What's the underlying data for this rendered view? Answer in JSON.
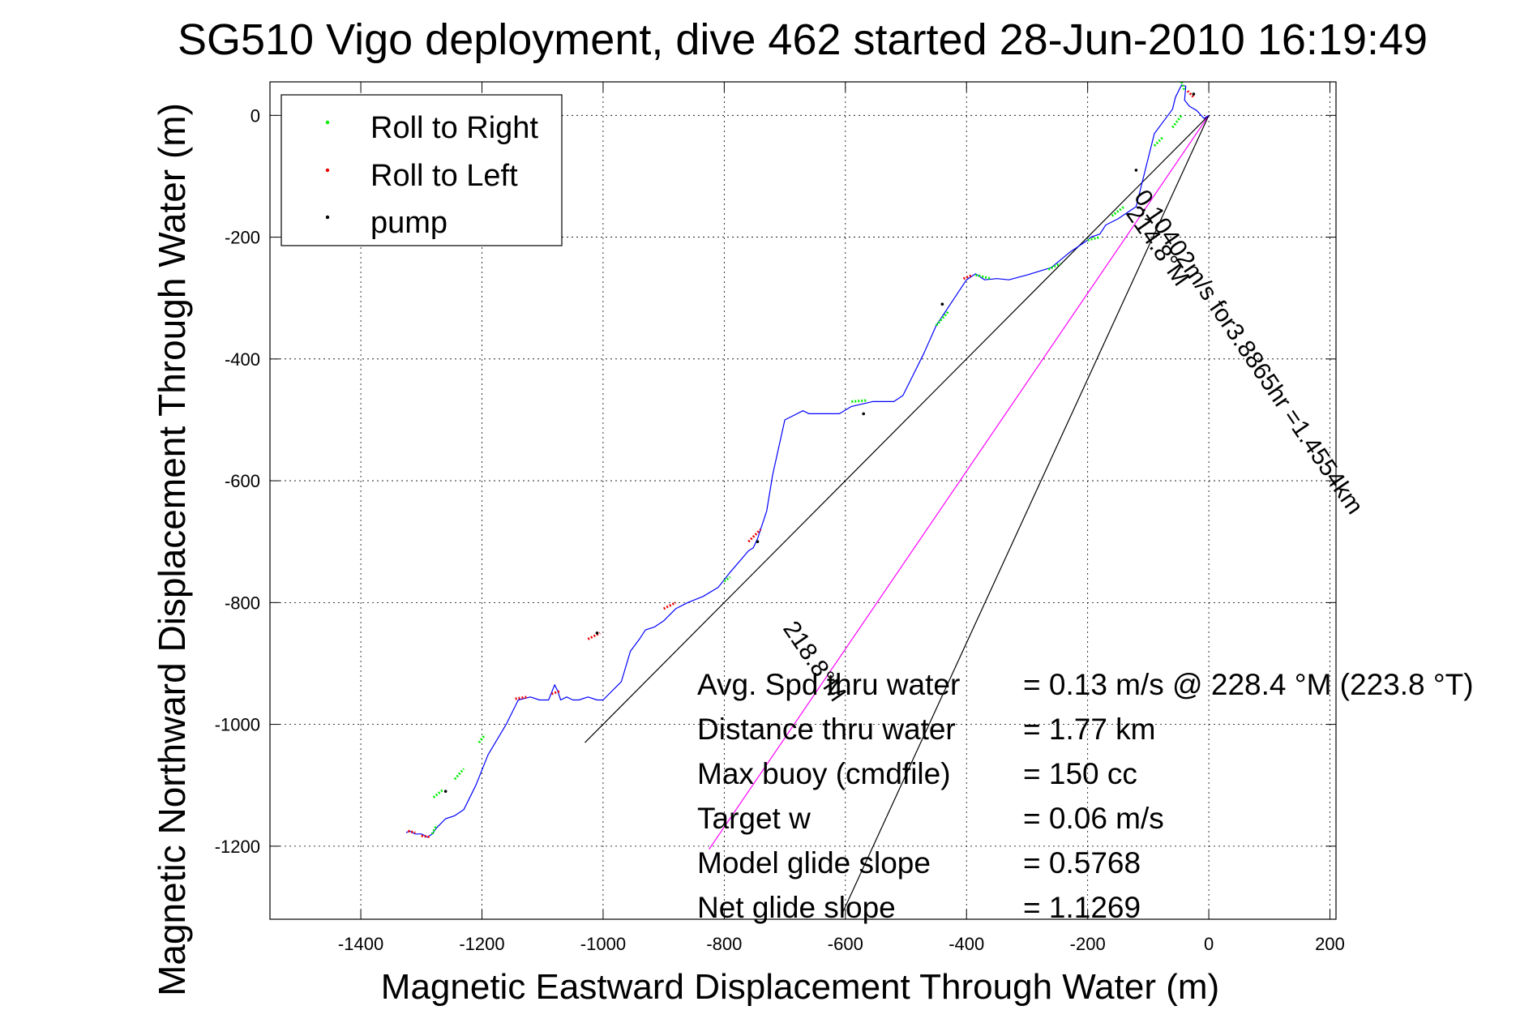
{
  "chart_data": {
    "type": "line",
    "title": "SG510 Vigo deployment, dive 462 started 28-Jun-2010 16:19:49",
    "xlabel": "Magnetic Eastward Displacement Through Water (m)",
    "ylabel": "Magnetic Northward Displacement Through Water (m)",
    "xlim": [
      -1550,
      210
    ],
    "ylim": [
      -1320,
      55
    ],
    "grid": true,
    "xticks": [
      -1400,
      -1200,
      -1000,
      -800,
      -600,
      -400,
      -200,
      0,
      200
    ],
    "yticks": [
      0,
      -200,
      -400,
      -600,
      -800,
      -1000,
      -1200
    ],
    "xtick_labels": [
      "-1400",
      "-1200",
      "-1000",
      "-800",
      "-600",
      "-400",
      "-200",
      "0",
      "200"
    ],
    "ytick_labels": [
      "0",
      "-200",
      "-400",
      "-600",
      "-800",
      "-1000",
      "-1200"
    ],
    "legend": {
      "position": "top-left",
      "entries": [
        {
          "label": "Roll to Right",
          "color": "#00ee00"
        },
        {
          "label": "Roll to Left",
          "color": "#ee0000"
        },
        {
          "label": "pump",
          "color": "#000000"
        }
      ]
    },
    "track": {
      "name": "glider track",
      "color": "#0000ff",
      "x": [
        0,
        -8,
        -20,
        -32,
        -40,
        -38,
        -45,
        -55,
        -60,
        -75,
        -90,
        -100,
        -120,
        -150,
        -170,
        -180,
        -195,
        -200,
        -230,
        -260,
        -300,
        -330,
        -350,
        -370,
        -385,
        -400,
        -420,
        -450,
        -470,
        -490,
        -505,
        -520,
        -555,
        -590,
        -610,
        -630,
        -650,
        -660,
        -670,
        -700,
        -720,
        -730,
        -740,
        -745,
        -752,
        -760,
        -790,
        -810,
        -835,
        -860,
        -880,
        -900,
        -915,
        -930,
        -940,
        -955,
        -970,
        -990,
        -1000,
        -1010,
        -1025,
        -1040,
        -1050,
        -1060,
        -1070,
        -1075,
        -1080,
        -1090,
        -1105,
        -1120,
        -1140,
        -1160,
        -1190,
        -1210,
        -1230,
        -1245,
        -1260,
        -1275,
        -1282,
        -1290,
        -1300,
        -1310,
        -1320,
        -1325
      ],
      "y": [
        0,
        -5,
        8,
        15,
        25,
        48,
        50,
        30,
        10,
        -10,
        -30,
        -70,
        -150,
        -170,
        -180,
        -195,
        -200,
        -205,
        -225,
        -250,
        -262,
        -270,
        -268,
        -270,
        -260,
        -270,
        -300,
        -345,
        -390,
        -430,
        -460,
        -470,
        -470,
        -478,
        -490,
        -490,
        -490,
        -490,
        -485,
        -500,
        -590,
        -650,
        -680,
        -695,
        -710,
        -715,
        -750,
        -775,
        -790,
        -800,
        -810,
        -830,
        -840,
        -845,
        -860,
        -880,
        -930,
        -950,
        -960,
        -960,
        -955,
        -960,
        -960,
        -955,
        -960,
        -945,
        -935,
        -960,
        -960,
        -955,
        -960,
        -1000,
        -1050,
        -1100,
        -1140,
        -1150,
        -1155,
        -1170,
        -1180,
        -1185,
        -1180,
        -1180,
        -1175,
        -1178
      ]
    },
    "roll_right_segments": [
      {
        "x": [
          -45,
          -40
        ],
        "y": [
          55,
          40
        ]
      },
      {
        "x": [
          -60,
          -45
        ],
        "y": [
          -20,
          0
        ]
      },
      {
        "x": [
          -90,
          -75
        ],
        "y": [
          -50,
          -35
        ]
      },
      {
        "x": [
          -160,
          -140
        ],
        "y": [
          -165,
          -150
        ]
      },
      {
        "x": [
          -200,
          -180
        ],
        "y": [
          -205,
          -200
        ]
      },
      {
        "x": [
          -265,
          -245
        ],
        "y": [
          -253,
          -243
        ]
      },
      {
        "x": [
          -385,
          -360
        ],
        "y": [
          -262,
          -268
        ]
      },
      {
        "x": [
          -450,
          -430
        ],
        "y": [
          -345,
          -322
        ]
      },
      {
        "x": [
          -590,
          -565
        ],
        "y": [
          -470,
          -468
        ]
      },
      {
        "x": [
          -800,
          -790
        ],
        "y": [
          -765,
          -758
        ]
      },
      {
        "x": [
          -1205,
          -1195
        ],
        "y": [
          -1030,
          -1017
        ]
      },
      {
        "x": [
          -1245,
          -1230
        ],
        "y": [
          -1090,
          -1073
        ]
      },
      {
        "x": [
          -1280,
          -1265
        ],
        "y": [
          -1120,
          -1108
        ]
      },
      {
        "x": [
          -1282,
          -1275
        ],
        "y": [
          -1180,
          -1165
        ]
      }
    ],
    "roll_left_segments": [
      {
        "x": [
          -35,
          -25
        ],
        "y": [
          40,
          30
        ]
      },
      {
        "x": [
          -405,
          -390
        ],
        "y": [
          -268,
          -262
        ]
      },
      {
        "x": [
          -760,
          -740
        ],
        "y": [
          -700,
          -680
        ]
      },
      {
        "x": [
          -900,
          -880
        ],
        "y": [
          -810,
          -800
        ]
      },
      {
        "x": [
          -1025,
          -1005
        ],
        "y": [
          -860,
          -850
        ]
      },
      {
        "x": [
          -1085,
          -1070
        ],
        "y": [
          -950,
          -945
        ]
      },
      {
        "x": [
          -1145,
          -1125
        ],
        "y": [
          -958,
          -955
        ]
      },
      {
        "x": [
          -1300,
          -1285
        ],
        "y": [
          -1183,
          -1185
        ]
      },
      {
        "x": [
          -1322,
          -1310
        ],
        "y": [
          -1175,
          -1178
        ]
      }
    ],
    "pump_points": {
      "x": [
        -25,
        -120,
        -440,
        -570,
        -745,
        -1010,
        -1260
      ],
      "y": [
        35,
        -90,
        -310,
        -490,
        -700,
        -850,
        -1110
      ]
    },
    "reference_lines": [
      {
        "name": "line to -1030,-1030",
        "color": "#000000",
        "x": [
          0,
          -1030
        ],
        "y": [
          0,
          -1030
        ]
      },
      {
        "name": "line to -825,-1205",
        "color": "#ff00ff",
        "x": [
          0,
          -825
        ],
        "y": [
          0,
          -1205
        ]
      },
      {
        "name": "line to -605,-1310",
        "color": "#000000",
        "x": [
          0,
          -605
        ],
        "y": [
          0,
          -1310
        ]
      }
    ],
    "line_annotations": {
      "heading_a": "214.8°M",
      "speed": "0.10402m/s for3.8865hr =1.4554km",
      "heading_b": "218.8°M"
    },
    "summary": [
      {
        "label": "Avg. Spd thru water",
        "value": "=  0.13 m/s @ 228.4 °M (223.8 °T)"
      },
      {
        "label": "Distance thru water",
        "value": "=  1.77 km"
      },
      {
        "label": "Max buoy (cmdfile)",
        "value": "= 150 cc"
      },
      {
        "label": "Target w",
        "value": "= 0.06 m/s"
      },
      {
        "label": "Model glide slope",
        "value": "= 0.5768"
      },
      {
        "label": "Net glide slope",
        "value": "= 1.1269"
      }
    ]
  }
}
